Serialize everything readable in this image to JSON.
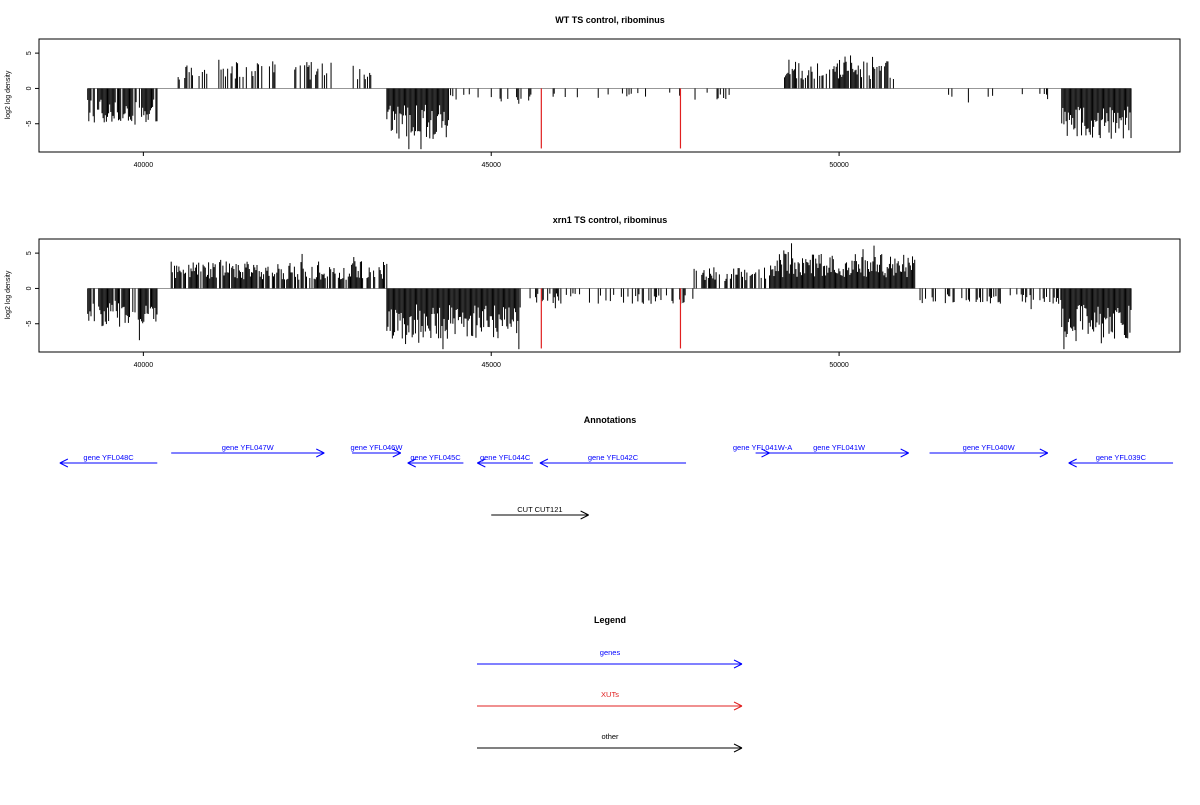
{
  "chart_data": [
    {
      "type": "bar",
      "title": "WT TS control, ribominus",
      "xlabel": "",
      "ylabel": "log2 log density",
      "xlim": [
        38500,
        54900
      ],
      "ylim": [
        -9,
        7
      ],
      "xticks": [
        40000,
        45000,
        50000
      ],
      "yticks": [
        -5,
        0,
        5
      ],
      "density_regions": [
        {
          "from": 39200,
          "to": 40200,
          "sign": -1,
          "amplitude": 4.5,
          "density": 0.8
        },
        {
          "from": 40500,
          "to": 42700,
          "sign": 1,
          "amplitude": 3.5,
          "density": 0.35
        },
        {
          "from": 43000,
          "to": 43400,
          "sign": 1,
          "amplitude": 2.5,
          "density": 0.3
        },
        {
          "from": 43500,
          "to": 44400,
          "sign": -1,
          "amplitude": 6.5,
          "density": 1.0
        },
        {
          "from": 44400,
          "to": 45700,
          "sign": -1,
          "amplitude": 2.0,
          "density": 0.2
        },
        {
          "from": 45700,
          "to": 48500,
          "sign": -1,
          "amplitude": 1.5,
          "density": 0.1
        },
        {
          "from": 49200,
          "to": 50800,
          "sign": 1,
          "amplitude": 3.5,
          "density": 0.55
        },
        {
          "from": 51400,
          "to": 53000,
          "sign": -1,
          "amplitude": 1.5,
          "density": 0.12
        },
        {
          "from": 53200,
          "to": 54200,
          "sign": -1,
          "amplitude": 6.5,
          "density": 1.0
        }
      ],
      "highlight_lines": [
        {
          "x": 45720,
          "y": -8.5,
          "color": "#e02020"
        },
        {
          "x": 47720,
          "y": -8.5,
          "color": "#e02020"
        }
      ]
    },
    {
      "type": "bar",
      "title": "xrn1 TS control, ribominus",
      "xlabel": "",
      "ylabel": "log2 log density",
      "xlim": [
        38500,
        54900
      ],
      "ylim": [
        -9,
        7
      ],
      "xticks": [
        40000,
        45000,
        50000
      ],
      "yticks": [
        -5,
        0,
        5
      ],
      "density_regions": [
        {
          "from": 39200,
          "to": 40200,
          "sign": -1,
          "amplitude": 5.0,
          "density": 0.9
        },
        {
          "from": 40400,
          "to": 43500,
          "sign": 1,
          "amplitude": 3.5,
          "density": 0.8
        },
        {
          "from": 43500,
          "to": 45400,
          "sign": -1,
          "amplitude": 6.5,
          "density": 1.0
        },
        {
          "from": 45400,
          "to": 47900,
          "sign": -1,
          "amplitude": 2.0,
          "density": 0.35
        },
        {
          "from": 47900,
          "to": 49000,
          "sign": 1,
          "amplitude": 2.8,
          "density": 0.6
        },
        {
          "from": 49000,
          "to": 51100,
          "sign": 1,
          "amplitude": 4.5,
          "density": 1.0
        },
        {
          "from": 51100,
          "to": 53200,
          "sign": -1,
          "amplitude": 2.0,
          "density": 0.3
        },
        {
          "from": 53200,
          "to": 54200,
          "sign": -1,
          "amplitude": 6.5,
          "density": 1.0
        }
      ],
      "highlight_lines": [
        {
          "x": 45720,
          "y": -8.5,
          "color": "#e02020"
        },
        {
          "x": 47720,
          "y": -8.5,
          "color": "#e02020"
        }
      ]
    }
  ],
  "annotations": {
    "title": "Annotations",
    "genes": [
      {
        "label": "gene YFL048C",
        "strand": "-",
        "from": 38800,
        "to": 40200,
        "row": 1,
        "color": "#0000ff"
      },
      {
        "label": "gene YFL047W",
        "strand": "+",
        "from": 40400,
        "to": 42600,
        "row": 0,
        "color": "#0000ff"
      },
      {
        "label": "gene YFL046W",
        "strand": "+",
        "from": 43000,
        "to": 43700,
        "row": 0,
        "color": "#0000ff"
      },
      {
        "label": "gene YFL045C",
        "strand": "-",
        "from": 43800,
        "to": 44600,
        "row": 1,
        "color": "#0000ff"
      },
      {
        "label": "gene YFL044C",
        "strand": "-",
        "from": 44800,
        "to": 45600,
        "row": 1,
        "color": "#0000ff"
      },
      {
        "label": "gene YFL042C",
        "strand": "-",
        "from": 45700,
        "to": 47800,
        "row": 1,
        "color": "#0000ff"
      },
      {
        "label": "gene YFL041W-A",
        "strand": "+",
        "from": 48800,
        "to": 49000,
        "row": 0,
        "color": "#0000ff"
      },
      {
        "label": "gene YFL041W",
        "strand": "+",
        "from": 49000,
        "to": 51000,
        "row": 0,
        "color": "#0000ff"
      },
      {
        "label": "gene YFL040W",
        "strand": "+",
        "from": 51300,
        "to": 53000,
        "row": 0,
        "color": "#0000ff"
      },
      {
        "label": "gene YFL039C",
        "strand": "-",
        "from": 53300,
        "to": 54800,
        "row": 1,
        "color": "#0000ff"
      },
      {
        "label": "CUT CUT121",
        "strand": "+",
        "from": 45000,
        "to": 46400,
        "row": 2,
        "color": "#000000"
      }
    ]
  },
  "legend": {
    "title": "Legend",
    "items": [
      {
        "label": "genes",
        "color": "#0000ff"
      },
      {
        "label": "XUTs",
        "color": "#e02020"
      },
      {
        "label": "other",
        "color": "#000000"
      }
    ]
  }
}
